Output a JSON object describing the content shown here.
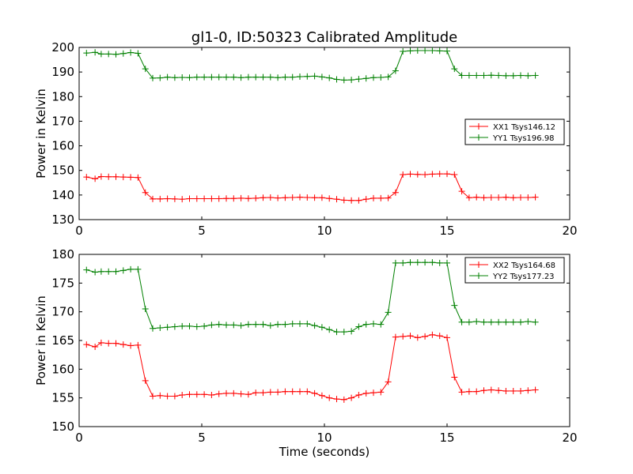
{
  "title": "gl1-0, ID:50323 Calibrated Amplitude",
  "chart_data": [
    {
      "type": "line",
      "ylabel": "Power in Kelvin",
      "xlim": [
        0,
        20
      ],
      "ylim": [
        130,
        200
      ],
      "xticks": [
        0,
        5,
        10,
        15,
        20
      ],
      "yticks": [
        130,
        140,
        150,
        160,
        170,
        180,
        190,
        200
      ],
      "legend_position": "center-right",
      "x": [
        0.3,
        0.65,
        0.9,
        1.2,
        1.5,
        1.8,
        2.1,
        2.4,
        2.7,
        3.0,
        3.3,
        3.6,
        3.9,
        4.2,
        4.5,
        4.8,
        5.1,
        5.4,
        5.7,
        6.0,
        6.3,
        6.6,
        6.9,
        7.2,
        7.5,
        7.8,
        8.1,
        8.4,
        8.7,
        9.0,
        9.3,
        9.6,
        9.9,
        10.2,
        10.5,
        10.8,
        11.1,
        11.4,
        11.7,
        12.0,
        12.3,
        12.6,
        12.9,
        13.2,
        13.5,
        13.8,
        14.1,
        14.4,
        14.7,
        15.0,
        15.3,
        15.6,
        15.9,
        16.2,
        16.5,
        16.8,
        17.1,
        17.4,
        17.7,
        18.0,
        18.3,
        18.6
      ],
      "series": [
        {
          "name": "XX1 Tsys146.12",
          "color": "#ff0000",
          "values": [
            147.3,
            146.6,
            147.5,
            147.4,
            147.4,
            147.3,
            147.2,
            147.1,
            141.0,
            138.4,
            138.4,
            138.5,
            138.4,
            138.3,
            138.5,
            138.5,
            138.5,
            138.5,
            138.5,
            138.6,
            138.6,
            138.7,
            138.6,
            138.7,
            138.9,
            139.0,
            138.8,
            138.9,
            139.0,
            139.1,
            139.0,
            138.9,
            138.9,
            138.6,
            138.3,
            137.9,
            137.8,
            137.8,
            138.3,
            138.7,
            138.7,
            138.8,
            141.0,
            148.3,
            148.5,
            148.4,
            148.3,
            148.5,
            148.6,
            148.6,
            148.3,
            141.5,
            138.9,
            139.1,
            138.9,
            139.0,
            139.0,
            139.1,
            138.9,
            139.0,
            139.0,
            139.1
          ]
        },
        {
          "name": "YY1 Tsys196.98",
          "color": "#008000",
          "values": [
            197.7,
            198.0,
            197.3,
            197.3,
            197.2,
            197.5,
            197.9,
            197.6,
            191.3,
            187.5,
            187.6,
            187.9,
            187.7,
            187.8,
            187.7,
            187.9,
            187.9,
            187.9,
            187.9,
            187.9,
            187.9,
            187.7,
            187.9,
            187.9,
            187.9,
            187.9,
            187.7,
            187.9,
            187.9,
            188.1,
            188.2,
            188.3,
            188.0,
            187.6,
            187.0,
            186.7,
            186.8,
            187.1,
            187.4,
            187.7,
            187.8,
            188.0,
            190.5,
            198.4,
            198.6,
            198.7,
            198.7,
            198.7,
            198.6,
            198.5,
            191.3,
            188.6,
            188.6,
            188.6,
            188.6,
            188.7,
            188.6,
            188.5,
            188.5,
            188.6,
            188.5,
            188.6
          ]
        }
      ]
    },
    {
      "type": "line",
      "xlabel": "Time (seconds)",
      "ylabel": "Power in Kelvin",
      "xlim": [
        0,
        20
      ],
      "ylim": [
        150,
        180
      ],
      "xticks": [
        0,
        5,
        10,
        15,
        20
      ],
      "yticks": [
        150,
        155,
        160,
        165,
        170,
        175,
        180
      ],
      "legend_position": "top-right",
      "x": [
        0.3,
        0.65,
        0.9,
        1.2,
        1.5,
        1.8,
        2.1,
        2.4,
        2.7,
        3.0,
        3.3,
        3.6,
        3.9,
        4.2,
        4.5,
        4.8,
        5.1,
        5.4,
        5.7,
        6.0,
        6.3,
        6.6,
        6.9,
        7.2,
        7.5,
        7.8,
        8.1,
        8.4,
        8.7,
        9.0,
        9.3,
        9.6,
        9.9,
        10.2,
        10.5,
        10.8,
        11.1,
        11.4,
        11.7,
        12.0,
        12.3,
        12.6,
        12.9,
        13.2,
        13.5,
        13.8,
        14.1,
        14.4,
        14.7,
        15.0,
        15.3,
        15.6,
        15.9,
        16.2,
        16.5,
        16.8,
        17.1,
        17.4,
        17.7,
        18.0,
        18.3,
        18.6
      ],
      "series": [
        {
          "name": "XX2 Tsys164.68",
          "color": "#ff0000",
          "values": [
            164.3,
            163.9,
            164.6,
            164.5,
            164.5,
            164.3,
            164.1,
            164.2,
            158.0,
            155.3,
            155.4,
            155.3,
            155.3,
            155.5,
            155.6,
            155.6,
            155.6,
            155.5,
            155.7,
            155.8,
            155.8,
            155.7,
            155.6,
            155.9,
            155.9,
            156.0,
            156.0,
            156.1,
            156.1,
            156.1,
            156.1,
            155.8,
            155.4,
            155.0,
            154.8,
            154.7,
            155.0,
            155.5,
            155.8,
            155.9,
            156.0,
            157.8,
            165.6,
            165.7,
            165.8,
            165.5,
            165.7,
            166.0,
            165.8,
            165.5,
            158.6,
            156.0,
            156.1,
            156.1,
            156.3,
            156.4,
            156.3,
            156.2,
            156.2,
            156.2,
            156.3,
            156.4
          ]
        },
        {
          "name": "YY2 Tsys177.23",
          "color": "#008000",
          "values": [
            177.3,
            176.9,
            177.0,
            177.0,
            177.0,
            177.2,
            177.4,
            177.4,
            170.5,
            167.1,
            167.2,
            167.3,
            167.4,
            167.5,
            167.5,
            167.4,
            167.5,
            167.7,
            167.8,
            167.7,
            167.7,
            167.6,
            167.8,
            167.8,
            167.8,
            167.6,
            167.8,
            167.8,
            167.9,
            167.9,
            167.9,
            167.6,
            167.3,
            166.9,
            166.5,
            166.5,
            166.6,
            167.4,
            167.8,
            167.9,
            167.8,
            169.9,
            178.5,
            178.5,
            178.6,
            178.6,
            178.6,
            178.6,
            178.5,
            178.5,
            171.1,
            168.2,
            168.2,
            168.3,
            168.2,
            168.2,
            168.2,
            168.2,
            168.2,
            168.2,
            168.3,
            168.2
          ]
        }
      ]
    }
  ]
}
